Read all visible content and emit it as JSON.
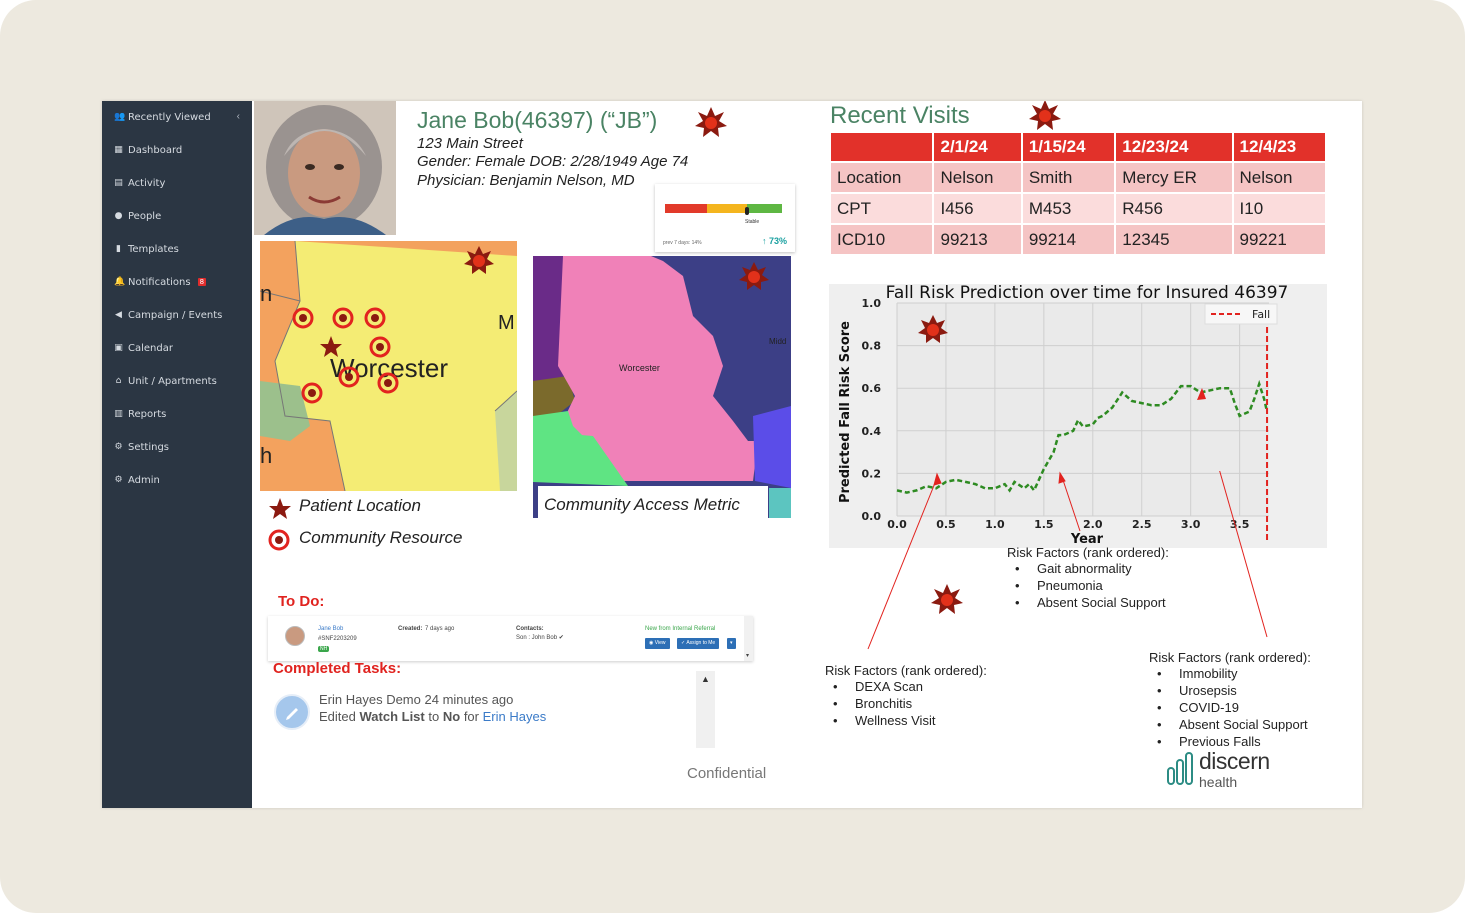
{
  "sidebar": {
    "items": [
      {
        "label": "Recently Viewed",
        "icon": "users-icon"
      },
      {
        "label": "Dashboard",
        "icon": "grid-icon"
      },
      {
        "label": "Activity",
        "icon": "list-icon"
      },
      {
        "label": "People",
        "icon": "person-icon"
      },
      {
        "label": "Templates",
        "icon": "file-icon"
      },
      {
        "label": "Notifications",
        "icon": "bell-icon",
        "badge": "8"
      },
      {
        "label": "Campaign / Events",
        "icon": "megaphone-icon"
      },
      {
        "label": "Calendar",
        "icon": "calendar-icon"
      },
      {
        "label": "Unit / Apartments",
        "icon": "home-icon"
      },
      {
        "label": "Reports",
        "icon": "bar-chart-icon"
      },
      {
        "label": "Settings",
        "icon": "gear-icon"
      },
      {
        "label": "Admin",
        "icon": "cogs-icon"
      }
    ]
  },
  "patient": {
    "name": "Jane Bob(46397) (“JB”)",
    "address": "123 Main Street",
    "demographics": "Gender: Female DOB: 2/28/1949  Age 74",
    "physician": "Physician: Benjamin Nelson, MD"
  },
  "gauge": {
    "status": "Stable",
    "prev": "prev 7 days: 14%",
    "trend": "↑ 73%",
    "level_fraction": 0.7
  },
  "maps": {
    "map1_city": "Worcester",
    "map1_edge_left": "n",
    "map1_edge_left2": "h",
    "map1_edge_right": "M",
    "map2_city": "Worcester",
    "map2_edge": "Midd",
    "legend_patient": "Patient Location",
    "legend_resource": "Community Resource",
    "access_label": "Community Access Metric",
    "colors": {
      "yellow": "#f4ec74",
      "orange": "#f3a25e",
      "green": "#9cc08c",
      "pink": "#f081b8",
      "navy": "#3c3f86",
      "purple": "#6a2b88",
      "olive": "#7b6a2c",
      "lime": "#5fe483",
      "blue": "#5b4de8",
      "teal": "#5cc5c0",
      "accent": "#e2312a"
    }
  },
  "recent_visits": {
    "title": "Recent Visits",
    "headers": [
      "",
      "2/1/24",
      "1/15/24",
      "12/23/24",
      "12/4/23"
    ],
    "rows": [
      [
        "Location",
        "Nelson",
        "Smith",
        "Mercy ER",
        "Nelson"
      ],
      [
        "CPT",
        "I456",
        "M453",
        "R456",
        "I10"
      ],
      [
        "ICD10",
        "99213",
        "99214",
        "12345",
        "99221"
      ]
    ]
  },
  "chart_data": {
    "type": "line",
    "title": "Fall Risk Prediction over time for Insured 46397",
    "xlabel": "Year",
    "ylabel": "Predicted Fall Risk Score",
    "xlim": [
      0,
      3.8
    ],
    "ylim": [
      0,
      1.0
    ],
    "xticks": [
      "0.0",
      "0.5",
      "1.0",
      "1.5",
      "2.0",
      "2.5",
      "3.0",
      "3.5"
    ],
    "yticks": [
      "0.0",
      "0.2",
      "0.4",
      "0.6",
      "0.8",
      "1.0"
    ],
    "grid": true,
    "legend_position": "top-right",
    "series": [
      {
        "values": [
          [
            0,
            0.12
          ],
          [
            0.1,
            0.11
          ],
          [
            0.2,
            0.12
          ],
          [
            0.3,
            0.14
          ],
          [
            0.4,
            0.13
          ],
          [
            0.5,
            0.16
          ],
          [
            0.6,
            0.17
          ],
          [
            0.7,
            0.16
          ],
          [
            0.8,
            0.15
          ],
          [
            0.9,
            0.13
          ],
          [
            1.0,
            0.13
          ],
          [
            1.1,
            0.15
          ],
          [
            1.15,
            0.12
          ],
          [
            1.2,
            0.16
          ],
          [
            1.3,
            0.13
          ],
          [
            1.35,
            0.15
          ],
          [
            1.4,
            0.12
          ],
          [
            1.45,
            0.17
          ],
          [
            1.5,
            0.22
          ],
          [
            1.55,
            0.26
          ],
          [
            1.6,
            0.3
          ],
          [
            1.65,
            0.38
          ],
          [
            1.7,
            0.38
          ],
          [
            1.8,
            0.4
          ],
          [
            1.85,
            0.45
          ],
          [
            1.9,
            0.42
          ],
          [
            2.0,
            0.43
          ],
          [
            2.05,
            0.46
          ],
          [
            2.1,
            0.47
          ],
          [
            2.2,
            0.51
          ],
          [
            2.3,
            0.58
          ],
          [
            2.4,
            0.54
          ],
          [
            2.5,
            0.53
          ],
          [
            2.6,
            0.52
          ],
          [
            2.7,
            0.52
          ],
          [
            2.8,
            0.55
          ],
          [
            2.9,
            0.61
          ],
          [
            3.0,
            0.61
          ],
          [
            3.1,
            0.58
          ],
          [
            3.2,
            0.59
          ],
          [
            3.3,
            0.6
          ],
          [
            3.4,
            0.6
          ],
          [
            3.45,
            0.53
          ],
          [
            3.5,
            0.47
          ],
          [
            3.6,
            0.49
          ],
          [
            3.65,
            0.55
          ],
          [
            3.7,
            0.62
          ],
          [
            3.75,
            0.55
          ],
          [
            3.78,
            0.49
          ]
        ],
        "color": "#2e8b22"
      }
    ],
    "markers": [
      {
        "name": "Fall",
        "x": 3.78,
        "color": "#e2231f"
      }
    ]
  },
  "risk_factors": {
    "header": "Risk Factors (rank ordered):",
    "middle": [
      "Gait abnormality",
      "Pneumonia",
      "Absent Social Support"
    ],
    "left": [
      "DEXA Scan",
      "Bronchitis",
      "Wellness Visit"
    ],
    "right": [
      "Immobility",
      "Urosepsis",
      "COVID-19",
      "Absent Social Support",
      "Previous Falls"
    ]
  },
  "todo": {
    "heading": "To Do:",
    "name": "Jane Bob",
    "id": "#SNF2203209",
    "tag": "NH",
    "created_label": "Created:",
    "created_value": "7 days ago",
    "contacts_label": "Contacts:",
    "contacts_value": "Son : John Bob ✔",
    "source": "New from Internal Referral",
    "view_btn": "View",
    "assign_btn": "Assign to Me"
  },
  "completed": {
    "heading": "Completed Tasks:",
    "user": "Erin Hayes Demo",
    "time": "24 minutes ago",
    "action_prefix": "Edited",
    "field": "Watch List",
    "to": "to",
    "value": "No",
    "for": "for",
    "target": "Erin Hayes"
  },
  "footer": {
    "confidential": "Confidential"
  },
  "brand": {
    "name": "discern",
    "sub": "health"
  }
}
